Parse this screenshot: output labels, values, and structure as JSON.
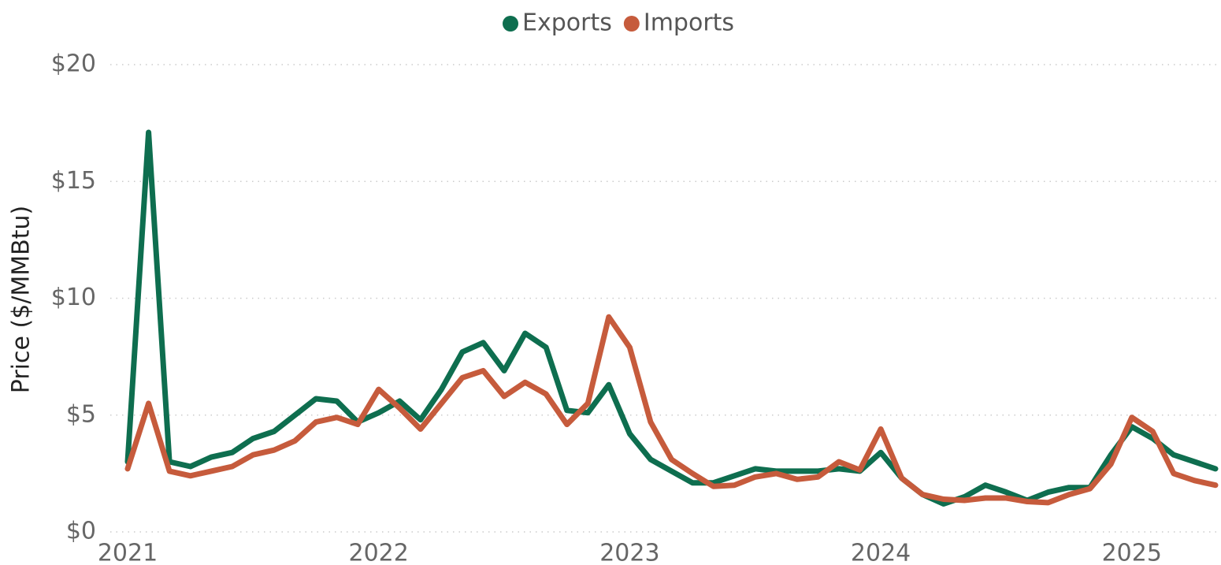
{
  "chart_data": {
    "type": "line",
    "y_label": "Price ($/MMBtu)",
    "categories": [
      "2021",
      null,
      null,
      null,
      null,
      null,
      null,
      null,
      null,
      null,
      null,
      null,
      "2022",
      null,
      null,
      null,
      null,
      null,
      null,
      null,
      null,
      null,
      null,
      null,
      "2023",
      null,
      null,
      null,
      null,
      null,
      null,
      null,
      null,
      null,
      null,
      null,
      "2024",
      null,
      null,
      null,
      null,
      null,
      null,
      null,
      null,
      null,
      null,
      null,
      "2025",
      null,
      null,
      null,
      null
    ],
    "series": [
      {
        "name": "Exports",
        "color": "#0e6e4f",
        "values": [
          3.0,
          17.1,
          3.0,
          2.8,
          3.2,
          3.4,
          4.0,
          4.3,
          5.0,
          5.7,
          5.6,
          4.7,
          5.1,
          5.6,
          4.8,
          6.1,
          7.7,
          8.1,
          6.9,
          8.5,
          7.9,
          5.2,
          5.1,
          6.3,
          4.2,
          3.1,
          2.6,
          2.1,
          2.1,
          2.4,
          2.7,
          2.6,
          2.6,
          2.6,
          2.7,
          2.6,
          3.4,
          2.3,
          1.6,
          1.2,
          1.5,
          2.0,
          1.7,
          1.35,
          1.7,
          1.9,
          1.9,
          3.3,
          4.5,
          4.0,
          3.3,
          3.0,
          2.7
        ]
      },
      {
        "name": "Imports",
        "color": "#c65b3c",
        "values": [
          2.7,
          5.5,
          2.6,
          2.4,
          2.6,
          2.8,
          3.3,
          3.5,
          3.9,
          4.7,
          4.9,
          4.6,
          6.1,
          5.3,
          4.4,
          5.5,
          6.6,
          6.9,
          5.8,
          6.4,
          5.9,
          4.6,
          5.5,
          9.2,
          7.9,
          4.7,
          3.1,
          2.5,
          1.95,
          2.0,
          2.35,
          2.5,
          2.25,
          2.35,
          3.0,
          2.65,
          4.4,
          2.3,
          1.6,
          1.4,
          1.35,
          1.45,
          1.45,
          1.3,
          1.25,
          1.6,
          1.85,
          2.9,
          4.9,
          4.3,
          2.5,
          2.2,
          2.0
        ]
      }
    ],
    "ylim": [
      0,
      20
    ],
    "yticks": [
      {
        "value": 0,
        "label": "$0"
      },
      {
        "value": 5,
        "label": "$5"
      },
      {
        "value": 10,
        "label": "$10"
      },
      {
        "value": 15,
        "label": "$15"
      },
      {
        "value": 20,
        "label": "$20"
      }
    ],
    "grid": true,
    "legend": "top"
  }
}
